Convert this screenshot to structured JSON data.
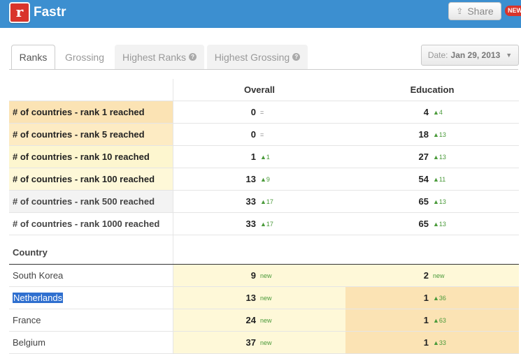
{
  "header": {
    "app_title": "Fastr",
    "logo_letter": "r",
    "share_label": "Share",
    "share_icon": "share-icon",
    "new_badge": "NEW",
    "brand_color": "#3c8fd0"
  },
  "tabs": [
    {
      "label": "Ranks",
      "active": true,
      "help": false
    },
    {
      "label": "Grossing",
      "active": false,
      "help": false
    },
    {
      "label": "Highest Ranks",
      "active": false,
      "help": true
    },
    {
      "label": "Highest Grossing",
      "active": false,
      "help": true
    }
  ],
  "date_filter": {
    "prefix": "Date:",
    "value": "Jan 29, 2013",
    "caret": "▼"
  },
  "table": {
    "columns": [
      "",
      "Overall",
      "Education"
    ],
    "summary_rows": [
      {
        "label": "# of countries - rank 1 reached",
        "overall": "0",
        "overall_delta": "=",
        "education": "4",
        "education_delta": "▲4"
      },
      {
        "label": "# of countries - rank 5 reached",
        "overall": "0",
        "overall_delta": "=",
        "education": "18",
        "education_delta": "▲13"
      },
      {
        "label": "# of countries - rank 10 reached",
        "overall": "1",
        "overall_delta": "▲1",
        "education": "27",
        "education_delta": "▲13"
      },
      {
        "label": "# of countries - rank 100 reached",
        "overall": "13",
        "overall_delta": "▲9",
        "education": "54",
        "education_delta": "▲11"
      },
      {
        "label": "# of countries - rank 500 reached",
        "overall": "33",
        "overall_delta": "▲17",
        "education": "65",
        "education_delta": "▲13"
      },
      {
        "label": "# of countries - rank 1000 reached",
        "overall": "33",
        "overall_delta": "▲17",
        "education": "65",
        "education_delta": "▲13"
      }
    ],
    "country_header": "Country",
    "country_rows": [
      {
        "country": "South Korea",
        "overall": "9",
        "overall_delta": "new",
        "education": "2",
        "education_delta": "new"
      },
      {
        "country": "Netherlands",
        "overall": "13",
        "overall_delta": "new",
        "education": "1",
        "education_delta": "▲36"
      },
      {
        "country": "France",
        "overall": "24",
        "overall_delta": "new",
        "education": "1",
        "education_delta": "▲63"
      },
      {
        "country": "Belgium",
        "overall": "37",
        "overall_delta": "new",
        "education": "1",
        "education_delta": "▲33"
      }
    ]
  }
}
